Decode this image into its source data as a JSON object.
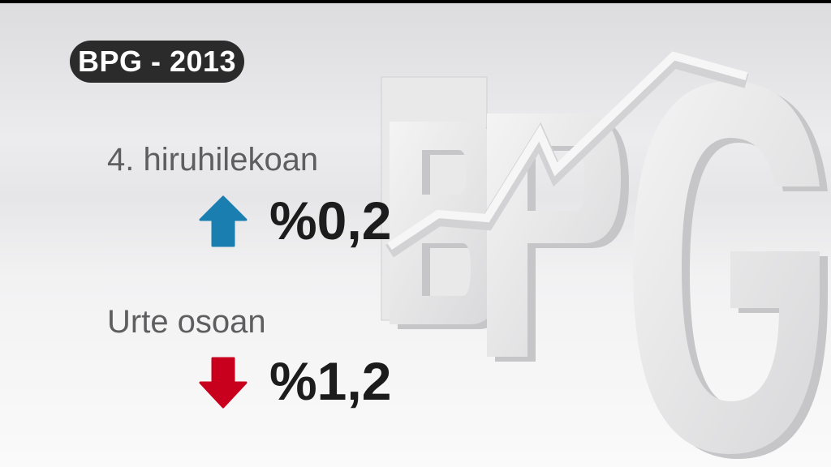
{
  "badge": {
    "title": "BPG - 2013"
  },
  "stats": [
    {
      "label": "4. hiruhilekoan",
      "value": "%0,2",
      "direction": "up",
      "icon": "arrow-up-icon",
      "color": "#1a7fb0"
    },
    {
      "label": "Urte osoan",
      "value": "%1,2",
      "direction": "down",
      "icon": "arrow-down-icon",
      "color": "#c8001e"
    }
  ],
  "artwork": {
    "letters": "BPG"
  }
}
